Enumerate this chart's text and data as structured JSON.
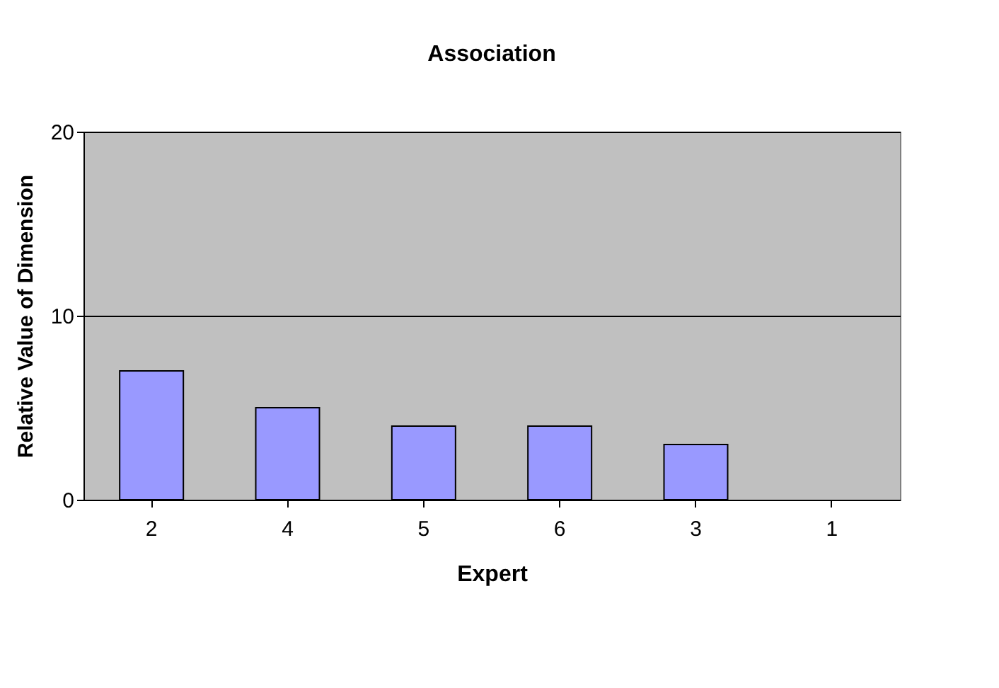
{
  "chart_data": {
    "type": "bar",
    "title": "Association",
    "xlabel": "Expert",
    "ylabel": "Relative Value of Dimension",
    "categories": [
      "2",
      "4",
      "5",
      "6",
      "3",
      "1"
    ],
    "values": [
      7,
      5,
      4,
      4,
      3,
      0
    ],
    "color": "#9999ff",
    "ylim": [
      0,
      20
    ],
    "yticks": [
      0,
      10,
      20
    ],
    "grid": "y"
  }
}
